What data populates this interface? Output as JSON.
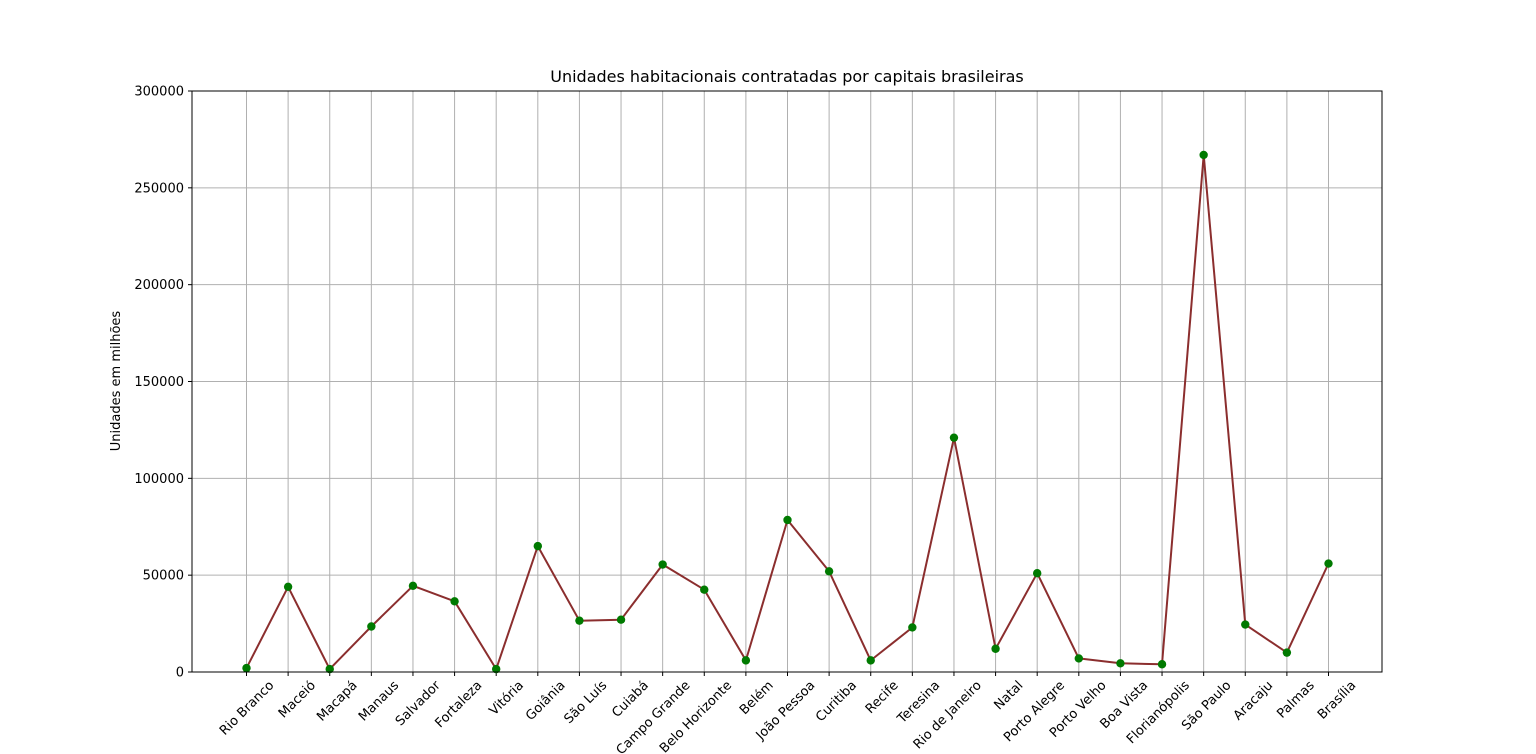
{
  "chart_data": {
    "type": "line",
    "title": "Unidades habitacionais contratadas por capitais brasileiras",
    "xlabel": "",
    "ylabel": "Unidades em milhões",
    "ylim": [
      0,
      300000
    ],
    "yticks": [
      "0",
      "50000",
      "100000",
      "150000",
      "200000",
      "250000",
      "300000"
    ],
    "grid": true,
    "line_color": "#8b2e2e",
    "marker_color": "#007a00",
    "categories": [
      "Rio Branco",
      "Maceió",
      "Macapá",
      "Manaus",
      "Salvador",
      "Fortaleza",
      "Vitória",
      "Goiânia",
      "São Luís",
      "Cuiabá",
      "Campo Grande",
      "Belo Horizonte",
      "Belém",
      "João Pessoa",
      "Curitiba",
      "Recife",
      "Teresina",
      "Rio de Janeiro",
      "Natal",
      "Porto Alegre",
      "Porto Velho",
      "Boa Vista",
      "Florianópolis",
      "São Paulo",
      "Aracaju",
      "Palmas",
      "Brasília"
    ],
    "series": [
      {
        "name": "",
        "values": [
          2000,
          44000,
          1500,
          23500,
          44500,
          36500,
          1500,
          65000,
          26500,
          27000,
          55500,
          42500,
          6000,
          78500,
          52000,
          6000,
          23000,
          121000,
          12000,
          51000,
          7000,
          4500,
          4000,
          267000,
          24500,
          10000,
          56000
        ]
      }
    ]
  }
}
